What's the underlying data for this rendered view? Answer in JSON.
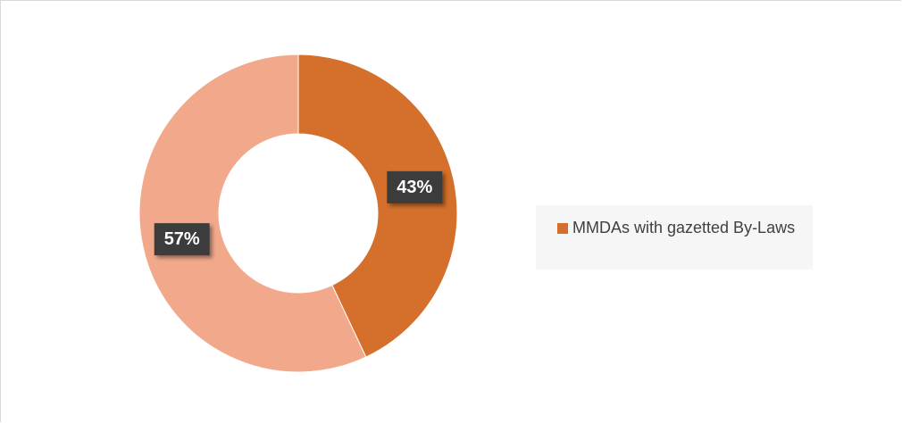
{
  "chart_data": {
    "type": "pie",
    "donut": true,
    "categories": [
      "MMDAs with gazetted By-Laws",
      null
    ],
    "values": [
      43,
      57
    ],
    "value_labels": [
      "43%",
      "57%"
    ],
    "colors": [
      "#d4702b",
      "#f2a98b"
    ]
  }
}
